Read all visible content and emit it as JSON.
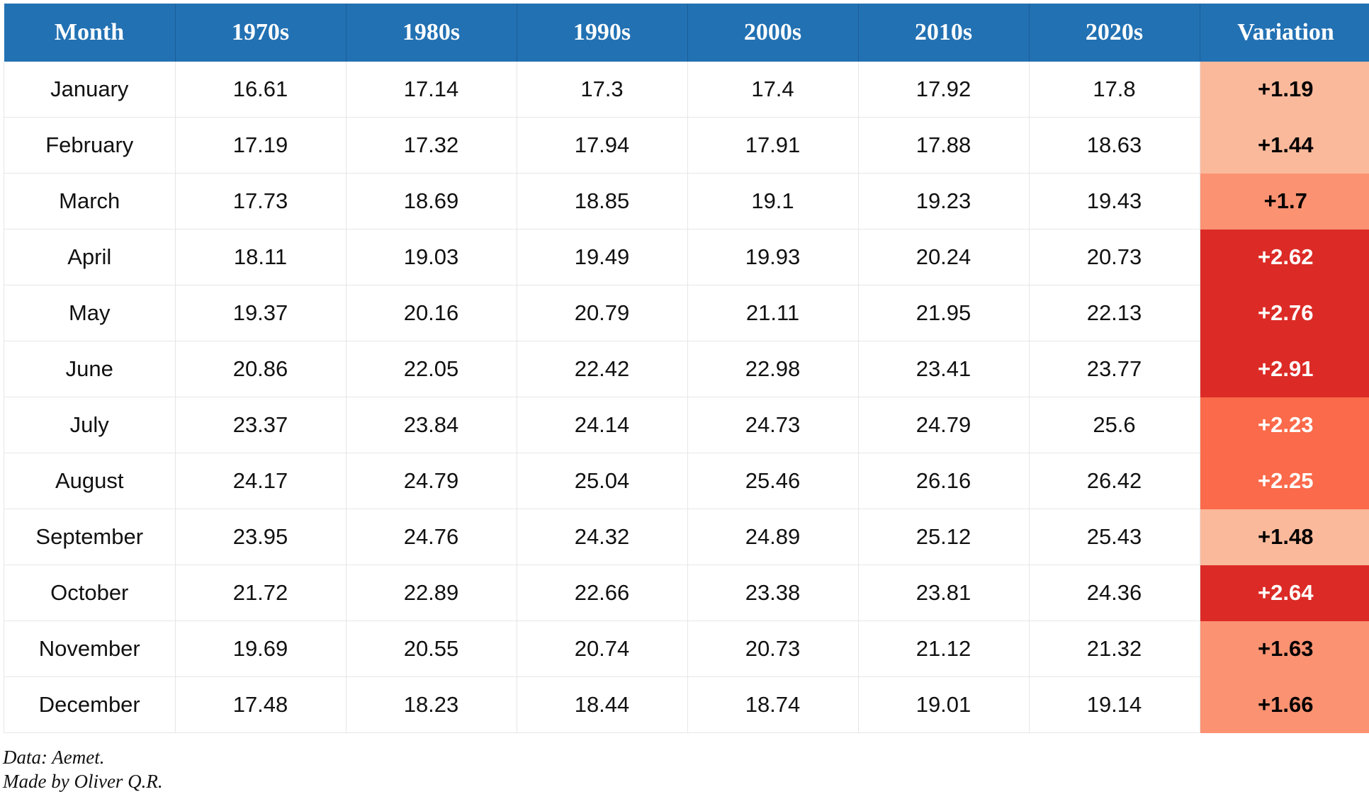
{
  "chart_data": {
    "type": "table",
    "columns": [
      "Month",
      "1970s",
      "1980s",
      "1990s",
      "2000s",
      "2010s",
      "2020s",
      "Variation"
    ],
    "rows": [
      {
        "month": "January",
        "values": [
          "16.61",
          "17.14",
          "17.3",
          "17.4",
          "17.92",
          "17.8"
        ],
        "variation": "+1.19",
        "variation_color": "#fbb99b",
        "variation_text_color": "#000000"
      },
      {
        "month": "February",
        "values": [
          "17.19",
          "17.32",
          "17.94",
          "17.91",
          "17.88",
          "18.63"
        ],
        "variation": "+1.44",
        "variation_color": "#fbb99b",
        "variation_text_color": "#000000"
      },
      {
        "month": "March",
        "values": [
          "17.73",
          "18.69",
          "18.85",
          "19.1",
          "19.23",
          "19.43"
        ],
        "variation": "+1.7",
        "variation_color": "#fb9272",
        "variation_text_color": "#000000"
      },
      {
        "month": "April",
        "values": [
          "18.11",
          "19.03",
          "19.49",
          "19.93",
          "20.24",
          "20.73"
        ],
        "variation": "+2.62",
        "variation_color": "#dc2b26",
        "variation_text_color": "#ffffff"
      },
      {
        "month": "May",
        "values": [
          "19.37",
          "20.16",
          "20.79",
          "21.11",
          "21.95",
          "22.13"
        ],
        "variation": "+2.76",
        "variation_color": "#dc2b26",
        "variation_text_color": "#ffffff"
      },
      {
        "month": "June",
        "values": [
          "20.86",
          "22.05",
          "22.42",
          "22.98",
          "23.41",
          "23.77"
        ],
        "variation": "+2.91",
        "variation_color": "#dc2b26",
        "variation_text_color": "#ffffff"
      },
      {
        "month": "July",
        "values": [
          "23.37",
          "23.84",
          "24.14",
          "24.73",
          "24.79",
          "25.6"
        ],
        "variation": "+2.23",
        "variation_color": "#fb6a4a",
        "variation_text_color": "#ffffff"
      },
      {
        "month": "August",
        "values": [
          "24.17",
          "24.79",
          "25.04",
          "25.46",
          "26.16",
          "26.42"
        ],
        "variation": "+2.25",
        "variation_color": "#fb6a4a",
        "variation_text_color": "#ffffff"
      },
      {
        "month": "September",
        "values": [
          "23.95",
          "24.76",
          "24.32",
          "24.89",
          "25.12",
          "25.43"
        ],
        "variation": "+1.48",
        "variation_color": "#fbb99b",
        "variation_text_color": "#000000"
      },
      {
        "month": "October",
        "values": [
          "21.72",
          "22.89",
          "22.66",
          "23.38",
          "23.81",
          "24.36"
        ],
        "variation": "+2.64",
        "variation_color": "#dc2b26",
        "variation_text_color": "#ffffff"
      },
      {
        "month": "November",
        "values": [
          "19.69",
          "20.55",
          "20.74",
          "20.73",
          "21.12",
          "21.32"
        ],
        "variation": "+1.63",
        "variation_color": "#fb9272",
        "variation_text_color": "#000000"
      },
      {
        "month": "December",
        "values": [
          "17.48",
          "18.23",
          "18.44",
          "18.74",
          "19.01",
          "19.14"
        ],
        "variation": "+1.66",
        "variation_color": "#fb9272",
        "variation_text_color": "#000000"
      }
    ],
    "header_color": "#2271b3"
  },
  "notes": {
    "source": "Data: Aemet.",
    "author": "Made by Oliver Q.R."
  }
}
